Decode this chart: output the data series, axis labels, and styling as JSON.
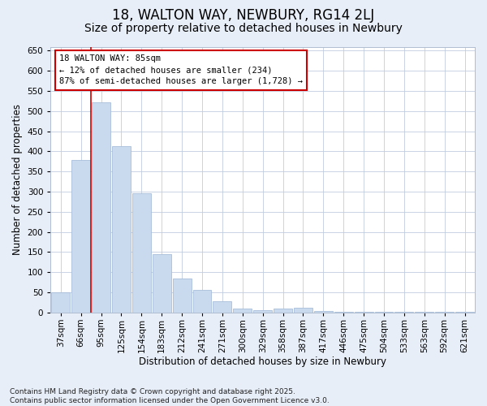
{
  "title": "18, WALTON WAY, NEWBURY, RG14 2LJ",
  "subtitle": "Size of property relative to detached houses in Newbury",
  "xlabel": "Distribution of detached houses by size in Newbury",
  "ylabel": "Number of detached properties",
  "categories": [
    "37sqm",
    "66sqm",
    "95sqm",
    "125sqm",
    "154sqm",
    "183sqm",
    "212sqm",
    "241sqm",
    "271sqm",
    "300sqm",
    "329sqm",
    "358sqm",
    "387sqm",
    "417sqm",
    "446sqm",
    "475sqm",
    "504sqm",
    "533sqm",
    "563sqm",
    "592sqm",
    "621sqm"
  ],
  "values": [
    50,
    378,
    522,
    413,
    297,
    144,
    85,
    56,
    28,
    9,
    6,
    10,
    11,
    4,
    2,
    2,
    1,
    1,
    1,
    1,
    2
  ],
  "bar_color": "#c9d9ee",
  "bar_edge_color": "#a8bedb",
  "vline_color": "#cc0000",
  "vline_x": 1.5,
  "annotation_text": "18 WALTON WAY: 85sqm\n← 12% of detached houses are smaller (234)\n87% of semi-detached houses are larger (1,728) →",
  "annotation_box_facecolor": "#ffffff",
  "annotation_box_edgecolor": "#cc0000",
  "ylim": [
    0,
    660
  ],
  "yticks": [
    0,
    50,
    100,
    150,
    200,
    250,
    300,
    350,
    400,
    450,
    500,
    550,
    600,
    650
  ],
  "footnote": "Contains HM Land Registry data © Crown copyright and database right 2025.\nContains public sector information licensed under the Open Government Licence v3.0.",
  "fig_bg_color": "#e8eef8",
  "plot_bg_color": "#ffffff",
  "grid_color": "#c0cce0",
  "title_fontsize": 12,
  "subtitle_fontsize": 10,
  "axis_label_fontsize": 8.5,
  "tick_fontsize": 7.5,
  "annotation_fontsize": 7.5,
  "footnote_fontsize": 6.5
}
